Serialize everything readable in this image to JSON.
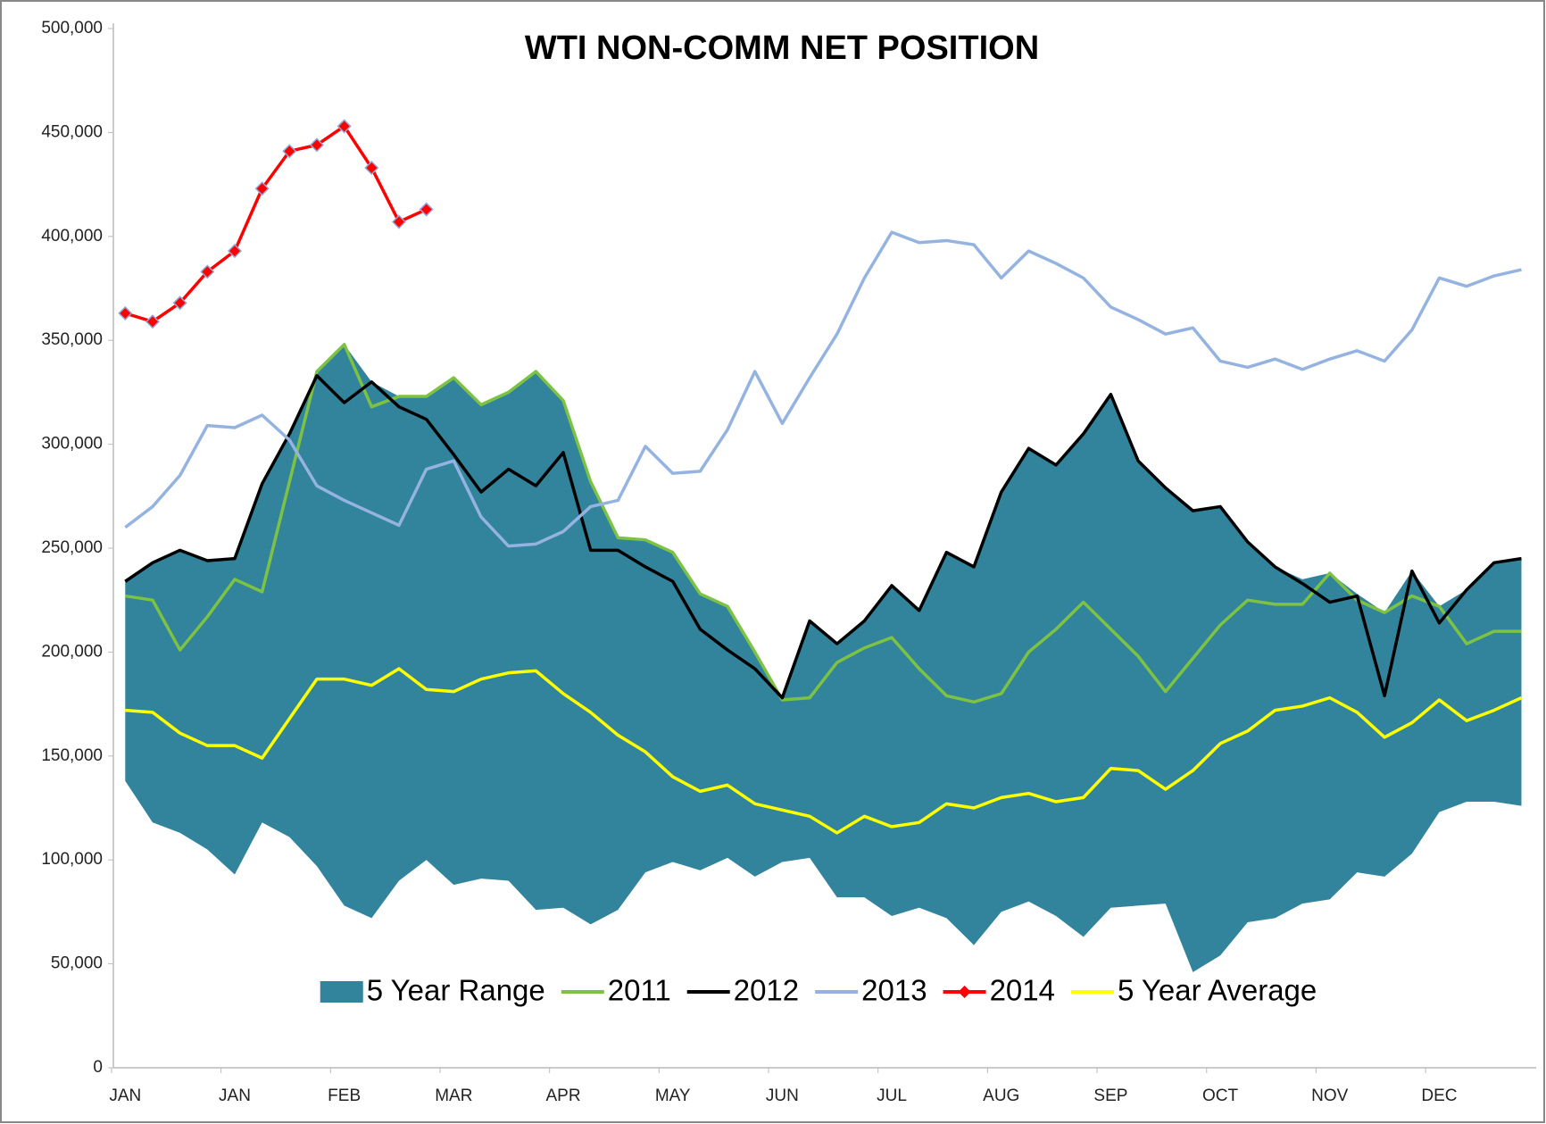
{
  "chart_data": {
    "type": "line",
    "title": "WTI NON-COMM NET  POSITION",
    "categories": [
      "JAN",
      null,
      null,
      null,
      "JAN",
      null,
      null,
      null,
      "FEB",
      null,
      null,
      null,
      "MAR",
      null,
      null,
      null,
      "APR",
      null,
      null,
      null,
      "MAY",
      null,
      null,
      null,
      "JUN",
      null,
      null,
      null,
      "JUL",
      null,
      null,
      null,
      "AUG",
      null,
      null,
      null,
      "SEP",
      null,
      null,
      null,
      "OCT",
      null,
      null,
      null,
      "NOV",
      null,
      null,
      null,
      "DEC",
      null,
      null,
      null
    ],
    "ylim": [
      0,
      500000
    ],
    "yticks": [
      0,
      {
        "value": 50000,
        "label": "50,000"
      },
      {
        "value": 100000,
        "label": "100,000"
      },
      {
        "value": 150000,
        "label": "150,000"
      },
      {
        "value": 200000,
        "label": "200,000"
      },
      {
        "value": 250000,
        "label": "250,000"
      },
      {
        "value": 300000,
        "label": "300,000"
      },
      {
        "value": 350000,
        "label": "350,000"
      },
      {
        "value": 400000,
        "label": "400,000"
      },
      {
        "value": 450000,
        "label": "450,000"
      },
      {
        "value": 500000,
        "label": "500,000"
      }
    ],
    "grid": false,
    "series": [
      {
        "name": "5 Year Range",
        "type": "area",
        "color": "#31849b",
        "low": [
          138000,
          118000,
          113000,
          105000,
          93000,
          118000,
          111000,
          97000,
          78000,
          72000,
          90000,
          100000,
          88000,
          91000,
          90000,
          76000,
          77000,
          69000,
          76000,
          94000,
          99000,
          95000,
          101000,
          92000,
          99000,
          101000,
          82000,
          82000,
          73000,
          77000,
          72000,
          59000,
          75000,
          80000,
          73000,
          63000,
          77000,
          78000,
          79000,
          46000,
          54000,
          70000,
          72000,
          79000,
          81000,
          94000,
          92000,
          103000,
          123000,
          128000,
          128000,
          126000
        ],
        "high": [
          234000,
          243000,
          249000,
          244000,
          245000,
          281000,
          305000,
          335000,
          348000,
          330000,
          323000,
          323000,
          332000,
          319000,
          325000,
          335000,
          321000,
          282000,
          255000,
          254000,
          248000,
          228000,
          222000,
          200000,
          178000,
          215000,
          204000,
          215000,
          232000,
          220000,
          248000,
          241000,
          277000,
          298000,
          290000,
          305000,
          324000,
          292000,
          279000,
          268000,
          270000,
          253000,
          241000,
          235000,
          238000,
          228000,
          219000,
          239000,
          222000,
          230000,
          243000,
          245000
        ]
      },
      {
        "name": "2011",
        "color": "#7dc242",
        "values": [
          227000,
          225000,
          201000,
          217000,
          235000,
          229000,
          282000,
          335000,
          348000,
          318000,
          323000,
          323000,
          332000,
          319000,
          325000,
          335000,
          321000,
          282000,
          255000,
          254000,
          248000,
          228000,
          222000,
          200000,
          177000,
          178000,
          195000,
          202000,
          207000,
          192000,
          179000,
          176000,
          180000,
          200000,
          211000,
          224000,
          211000,
          198000,
          181000,
          197000,
          213000,
          225000,
          223000,
          223000,
          238000,
          225000,
          219000,
          227000,
          222000,
          204000,
          210000,
          210000
        ]
      },
      {
        "name": "2012",
        "color": "#000000",
        "values": [
          234000,
          243000,
          249000,
          244000,
          245000,
          281000,
          305000,
          333000,
          320000,
          330000,
          318000,
          312000,
          295000,
          277000,
          288000,
          280000,
          296000,
          249000,
          249000,
          241000,
          234000,
          211000,
          201000,
          192000,
          178000,
          215000,
          204000,
          215000,
          232000,
          220000,
          248000,
          241000,
          277000,
          298000,
          290000,
          305000,
          324000,
          292000,
          279000,
          268000,
          270000,
          253000,
          241000,
          233000,
          224000,
          227000,
          179000,
          239000,
          214000,
          230000,
          243000,
          245000
        ]
      },
      {
        "name": "2013",
        "color": "#95b3e0",
        "values": [
          260000,
          270000,
          285000,
          309000,
          308000,
          314000,
          302000,
          280000,
          273000,
          267000,
          261000,
          288000,
          292000,
          265000,
          251000,
          252000,
          258000,
          270000,
          273000,
          299000,
          286000,
          287000,
          307000,
          335000,
          310000,
          332000,
          353000,
          380000,
          402000,
          397000,
          398000,
          396000,
          380000,
          393000,
          387000,
          380000,
          366000,
          360000,
          353000,
          356000,
          340000,
          337000,
          341000,
          336000,
          341000,
          345000,
          340000,
          355000,
          380000,
          376000,
          381000,
          384000
        ]
      },
      {
        "name": "2014",
        "color": "#ff0000",
        "marker": "diamond",
        "values": [
          363000,
          359000,
          368000,
          383000,
          393000,
          423000,
          441000,
          444000,
          453000,
          433000,
          407000,
          413000,
          null,
          null,
          null,
          null,
          null,
          null,
          null,
          null,
          null,
          null,
          null,
          null,
          null,
          null,
          null,
          null,
          null,
          null,
          null,
          null,
          null,
          null,
          null,
          null,
          null,
          null,
          null,
          null,
          null,
          null,
          null,
          null,
          null,
          null,
          null,
          null,
          null,
          null,
          null,
          null
        ]
      },
      {
        "name": "5 Year Average",
        "color": "#ffff00",
        "values": [
          172000,
          171000,
          161000,
          155000,
          155000,
          149000,
          168000,
          187000,
          187000,
          184000,
          192000,
          182000,
          181000,
          187000,
          190000,
          191000,
          180000,
          171000,
          160000,
          152000,
          140000,
          133000,
          136000,
          127000,
          124000,
          121000,
          113000,
          121000,
          116000,
          118000,
          127000,
          125000,
          130000,
          132000,
          128000,
          130000,
          144000,
          143000,
          134000,
          143000,
          156000,
          162000,
          172000,
          174000,
          178000,
          171000,
          159000,
          166000,
          177000,
          167000,
          172000,
          178000
        ]
      }
    ]
  }
}
